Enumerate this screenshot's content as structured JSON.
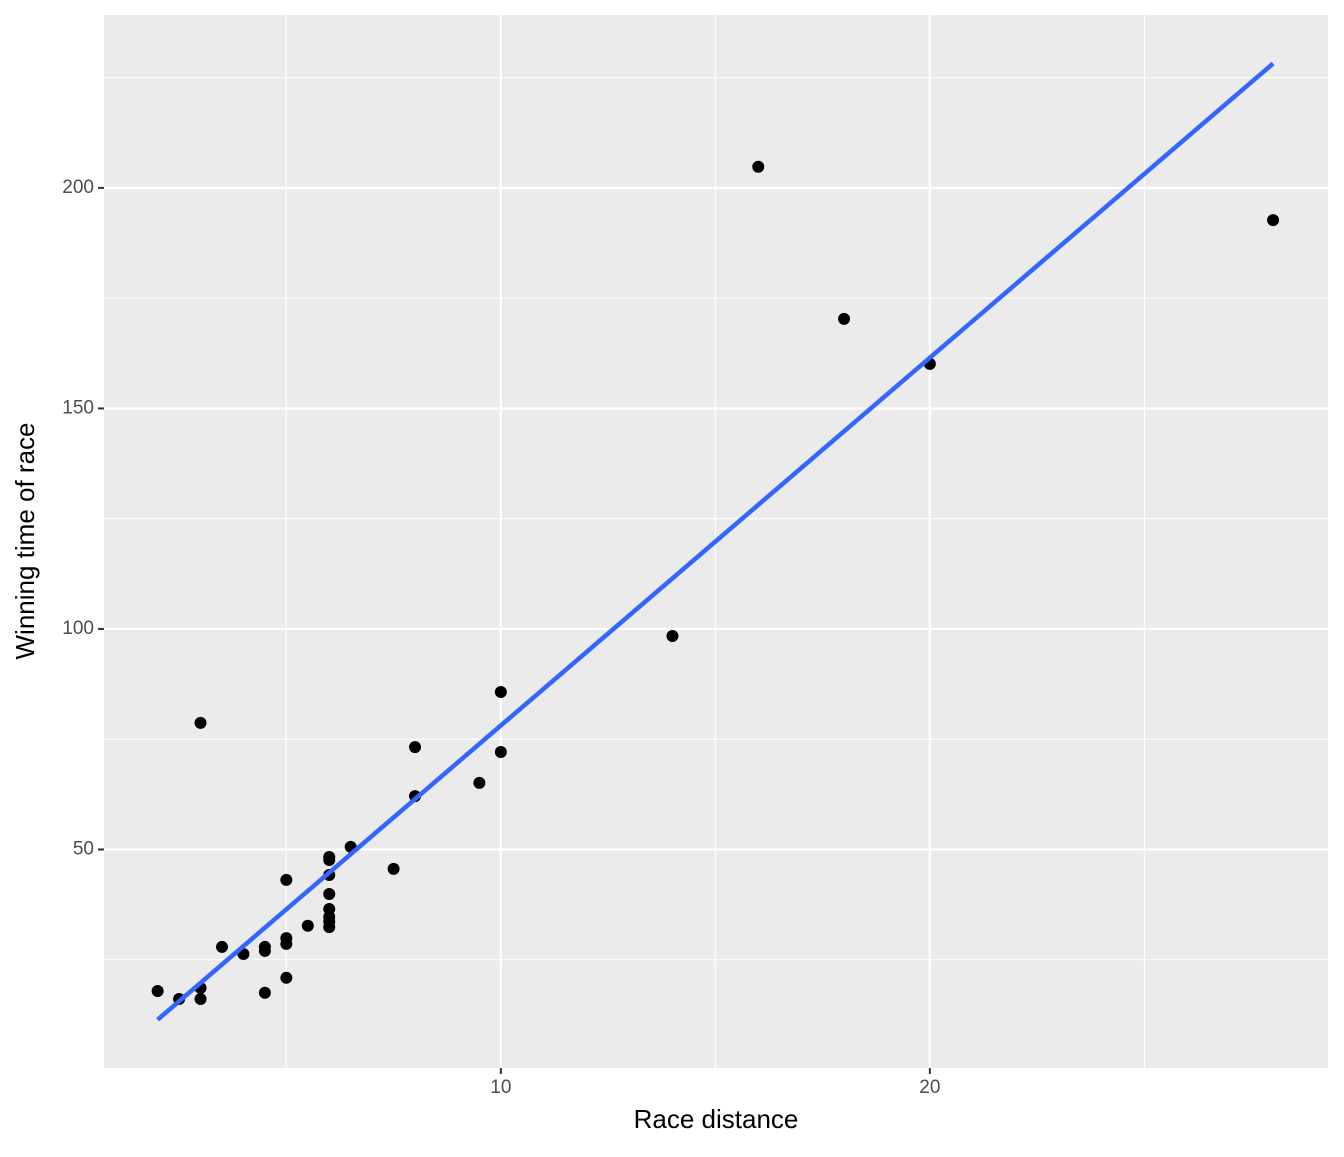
{
  "chart_data": {
    "type": "scatter",
    "x_label": "Race distance",
    "y_label": "Winning time of race",
    "x": [
      2,
      2.5,
      3,
      3,
      3,
      3.5,
      4,
      4.5,
      4.5,
      4.5,
      5,
      5,
      5,
      5,
      5.5,
      6,
      6,
      6,
      6,
      6,
      6,
      6,
      6,
      6.5,
      7.5,
      8,
      8,
      9.5,
      10,
      10,
      14,
      16,
      18,
      20,
      28
    ],
    "values": [
      17.9,
      16.1,
      18.6,
      16.1,
      78.7,
      27.9,
      26.3,
      27.9,
      27.0,
      17.5,
      43.1,
      29.9,
      28.6,
      20.9,
      32.7,
      48.3,
      47.6,
      44.2,
      39.9,
      36.5,
      34.7,
      33.6,
      32.4,
      50.6,
      45.6,
      73.2,
      62.1,
      65.1,
      85.7,
      72.1,
      98.4,
      204.8,
      170.3,
      160.1,
      192.7
    ],
    "color": "#000000",
    "trend_line": {
      "x": [
        2,
        28
      ],
      "values": [
        11.4,
        228.2
      ],
      "color": "#3366ff"
    },
    "xlim": [
      0.75,
      29.28
    ],
    "ylim": [
      0.45,
      239.2
    ],
    "xticks": [
      10,
      20
    ],
    "yticks": [
      50,
      100,
      150,
      200
    ],
    "x_minor_grid": [
      5,
      15,
      25
    ],
    "y_minor_grid": [
      25,
      75,
      125,
      175,
      225
    ],
    "grid": true
  }
}
